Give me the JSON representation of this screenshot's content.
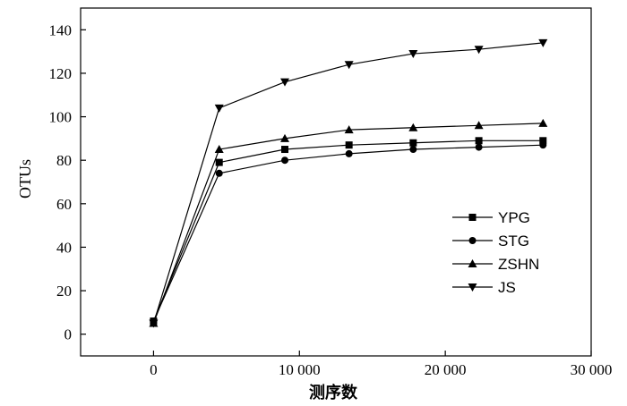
{
  "chart_data": {
    "type": "line",
    "title": "",
    "xlabel": "测序数",
    "ylabel": "OTUs",
    "xlim": [
      -5000,
      30000
    ],
    "ylim": [
      -10,
      150
    ],
    "x_ticks": [
      0,
      10000,
      20000,
      30000
    ],
    "x_tick_labels": [
      "0",
      "10 000",
      "20 000",
      "30 000"
    ],
    "y_ticks": [
      0,
      20,
      40,
      60,
      80,
      100,
      120,
      140
    ],
    "y_tick_labels": [
      "0",
      "20",
      "40",
      "60",
      "80",
      "100",
      "120",
      "140"
    ],
    "grid": false,
    "legend_position": "lower-right",
    "x": [
      0,
      4500,
      9000,
      13400,
      17800,
      22300,
      26700
    ],
    "series": [
      {
        "name": "YPG",
        "marker": "square",
        "values": [
          6,
          79,
          85,
          87,
          88,
          89,
          89
        ]
      },
      {
        "name": "STG",
        "marker": "circle",
        "values": [
          6,
          74,
          80,
          83,
          85,
          86,
          87
        ]
      },
      {
        "name": "ZSHN",
        "marker": "triangle-up",
        "values": [
          5,
          85,
          90,
          94,
          95,
          96,
          97
        ]
      },
      {
        "name": "JS",
        "marker": "triangle-down",
        "values": [
          5,
          104,
          116,
          124,
          129,
          131,
          134
        ]
      }
    ]
  }
}
